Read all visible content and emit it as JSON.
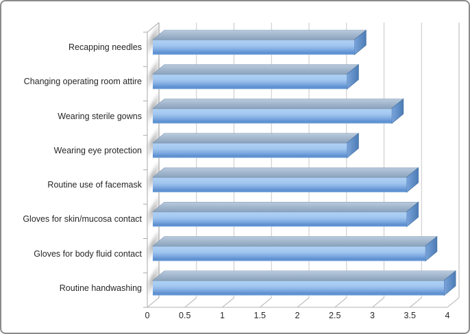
{
  "chart_data": {
    "type": "bar",
    "orientation": "horizontal",
    "style": "3d-glossy",
    "categories": [
      "Recapping needles",
      "Changing operating room attire",
      "Wearing sterile gowns",
      "Wearing eye protection",
      "Routine use of facemask",
      "Gloves for skin/mucosa contact",
      "Gloves for body fluid contact",
      "Routine handwashing"
    ],
    "values": [
      2.7,
      2.6,
      3.2,
      2.6,
      3.4,
      3.4,
      3.65,
      3.9
    ],
    "xlim": [
      0,
      4
    ],
    "x_tick_step": 0.5,
    "x_tick_labels": [
      "0",
      "0.5",
      "1",
      "1.5",
      "2",
      "2.5",
      "3",
      "3.5",
      "4"
    ],
    "grid": "vertical-only",
    "legend": "none",
    "colors": {
      "bar_edge_top": "#7e95ae",
      "bar_light": "#aed0f4",
      "bar_mid": "#84aee3",
      "bar_dark": "#6093d2",
      "bar_bottom_sheen": "#9abde8",
      "bar_cap_light": "#79a3da",
      "bar_cap_dark": "#4c7cb5",
      "bar_top_face_light": "#b9cadd",
      "bar_top_face_dark": "#8ba3bd",
      "gridline": "#c7c7c7",
      "axis_line": "#9d9d9d",
      "floor_line": "#b0b0b0",
      "text": "#262626",
      "frame_border": "#8b8b8b",
      "background": "#ffffff"
    }
  }
}
